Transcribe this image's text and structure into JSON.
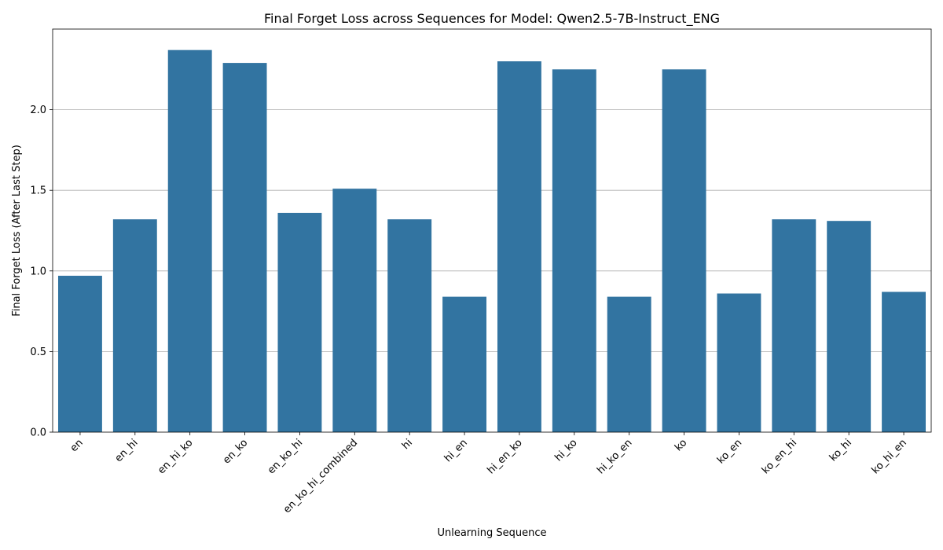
{
  "chart_data": {
    "type": "bar",
    "title": "Final Forget Loss across Sequences for Model: Qwen2.5-7B-Instruct_ENG",
    "xlabel": "Unlearning Sequence",
    "ylabel": "Final Forget Loss (After Last Step)",
    "categories": [
      "en",
      "en_hi",
      "en_hi_ko",
      "en_ko",
      "en_ko_hi",
      "en_ko_hi_combined",
      "hi",
      "hi_en",
      "hi_en_ko",
      "hi_ko",
      "hi_ko_en",
      "ko",
      "ko_en",
      "ko_en_hi",
      "ko_hi",
      "ko_hi_en"
    ],
    "values": [
      0.97,
      1.32,
      2.37,
      2.29,
      1.36,
      1.51,
      1.32,
      0.84,
      2.3,
      2.25,
      0.84,
      2.25,
      0.86,
      1.32,
      1.31,
      0.87
    ],
    "ylim": [
      0,
      2.5
    ],
    "yticks": [
      0.0,
      0.5,
      1.0,
      1.5,
      2.0
    ],
    "ytick_labels": [
      "0.0",
      "0.5",
      "1.0",
      "1.5",
      "2.0"
    ],
    "grid": "horizontal",
    "bar_color": "#3274a1"
  }
}
